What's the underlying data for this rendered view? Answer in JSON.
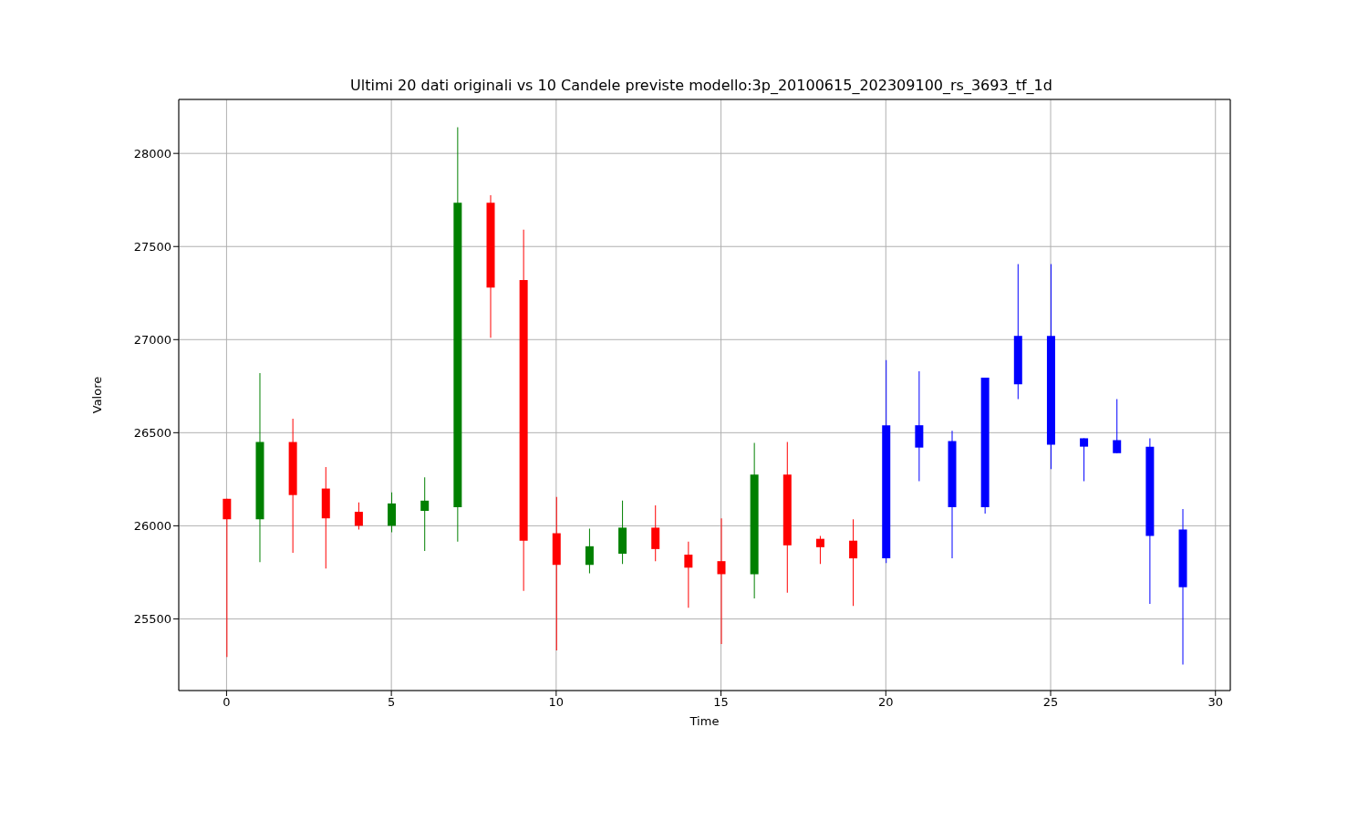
{
  "chart_data": {
    "type": "candlestick",
    "title": "Ultimi 20 dati originali vs 10 Candele previste modello:3p_20100615_202309100_rs_3693_tf_1d",
    "xlabel": "Time",
    "ylabel": "Valore",
    "x": [
      0,
      1,
      2,
      3,
      4,
      5,
      6,
      7,
      8,
      9,
      10,
      11,
      12,
      13,
      14,
      15,
      16,
      17,
      18,
      19,
      20,
      21,
      22,
      23,
      24,
      25,
      26,
      27,
      28,
      29
    ],
    "ohlc": [
      [
        26145,
        26145,
        25295,
        26035
      ],
      [
        26035,
        26820,
        25805,
        26450
      ],
      [
        26450,
        26575,
        25855,
        26165
      ],
      [
        26200,
        26315,
        25770,
        26040
      ],
      [
        26075,
        26125,
        25980,
        26000
      ],
      [
        26000,
        26180,
        25965,
        26120
      ],
      [
        26080,
        26260,
        25865,
        26135
      ],
      [
        26100,
        28140,
        25915,
        27735
      ],
      [
        27735,
        27775,
        27010,
        27280
      ],
      [
        27320,
        27590,
        25650,
        25920
      ],
      [
        25960,
        26155,
        25330,
        25790
      ],
      [
        25790,
        25985,
        25745,
        25890
      ],
      [
        25850,
        26135,
        25795,
        25990
      ],
      [
        25990,
        26110,
        25810,
        25875
      ],
      [
        25845,
        25915,
        25560,
        25775
      ],
      [
        25810,
        26040,
        25365,
        25740
      ],
      [
        25740,
        26445,
        25610,
        26275
      ],
      [
        26275,
        26450,
        25640,
        25895
      ],
      [
        25930,
        25945,
        25795,
        25885
      ],
      [
        25920,
        26035,
        25570,
        25825
      ],
      [
        26540,
        26890,
        25800,
        25825
      ],
      [
        26540,
        26830,
        26240,
        26420
      ],
      [
        26455,
        26510,
        25825,
        26100
      ],
      [
        26795,
        26795,
        26065,
        26100
      ],
      [
        27020,
        27405,
        26680,
        26760
      ],
      [
        27020,
        27405,
        26305,
        26435
      ],
      [
        26470,
        26470,
        26240,
        26425
      ],
      [
        26460,
        26680,
        26390,
        26390
      ],
      [
        26425,
        26470,
        25580,
        25945
      ],
      [
        25980,
        26090,
        25255,
        25670
      ]
    ],
    "colors": [
      "#ff0000",
      "#008000",
      "#ff0000",
      "#ff0000",
      "#ff0000",
      "#008000",
      "#008000",
      "#008000",
      "#ff0000",
      "#ff0000",
      "#ff0000",
      "#008000",
      "#008000",
      "#ff0000",
      "#ff0000",
      "#ff0000",
      "#008000",
      "#ff0000",
      "#ff0000",
      "#ff0000",
      "#0000ff",
      "#0000ff",
      "#0000ff",
      "#0000ff",
      "#0000ff",
      "#0000ff",
      "#0000ff",
      "#0000ff",
      "#0000ff",
      "#0000ff"
    ],
    "xlim": [
      -1.45,
      30.45
    ],
    "ylim": [
      25115,
      28290
    ],
    "xticks": [
      0,
      5,
      10,
      15,
      20,
      25,
      30
    ],
    "yticks": [
      25500,
      26000,
      26500,
      27000,
      27500,
      28000
    ],
    "grid": true
  }
}
